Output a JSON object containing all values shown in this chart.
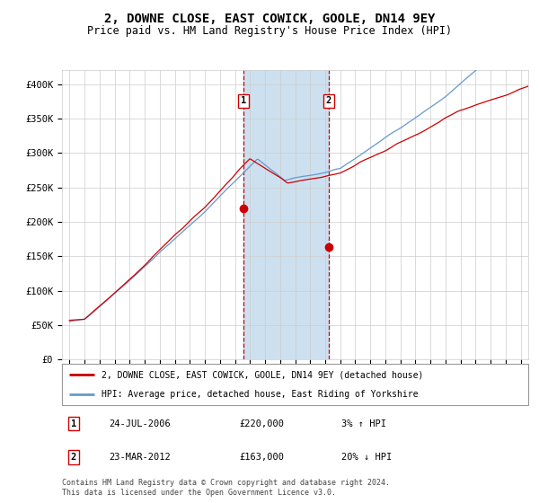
{
  "title": "2, DOWNE CLOSE, EAST COWICK, GOOLE, DN14 9EY",
  "subtitle": "Price paid vs. HM Land Registry's House Price Index (HPI)",
  "legend_label_red": "2, DOWNE CLOSE, EAST COWICK, GOOLE, DN14 9EY (detached house)",
  "legend_label_blue": "HPI: Average price, detached house, East Riding of Yorkshire",
  "footnote": "Contains HM Land Registry data © Crown copyright and database right 2024.\nThis data is licensed under the Open Government Licence v3.0.",
  "sale1_date": "24-JUL-2006",
  "sale1_price": "£220,000",
  "sale1_hpi": "3% ↑ HPI",
  "sale2_date": "23-MAR-2012",
  "sale2_price": "£163,000",
  "sale2_hpi": "20% ↓ HPI",
  "sale1_x": 2006.56,
  "sale1_y": 220000,
  "sale2_x": 2012.23,
  "sale2_y": 163000,
  "shade_x1": 2006.56,
  "shade_x2": 2012.23,
  "ylim": [
    0,
    420000
  ],
  "xlim": [
    1994.5,
    2025.5
  ],
  "yticks": [
    0,
    50000,
    100000,
    150000,
    200000,
    250000,
    300000,
    350000,
    400000
  ],
  "ytick_labels": [
    "£0",
    "£50K",
    "£100K",
    "£150K",
    "£200K",
    "£250K",
    "£300K",
    "£350K",
    "£400K"
  ],
  "red_color": "#cc0000",
  "blue_color": "#6699cc",
  "shade_color": "#cce0f0",
  "grid_color": "#cccccc",
  "bg_color": "#ffffff",
  "title_fontsize": 10,
  "subtitle_fontsize": 8.5
}
